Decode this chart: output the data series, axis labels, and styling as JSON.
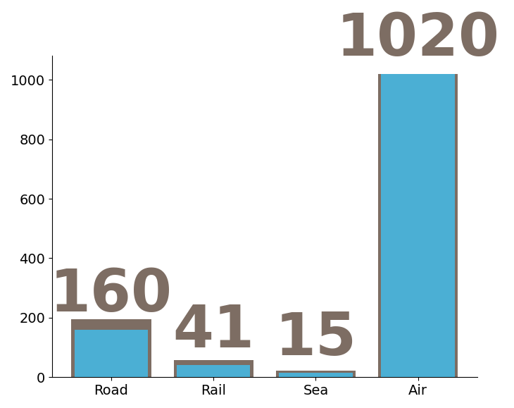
{
  "title": "",
  "figsize": [
    7.3,
    5.79
  ],
  "dpi": 100,
  "bar_color_blue": "#4BAFD4",
  "bar_color_brown": "#7D6D63",
  "background_color": "#FFFFFF",
  "categories": [
    "Road",
    "Rail",
    "Sea",
    "Air"
  ],
  "blue_values": [
    160,
    41,
    15,
    1020
  ],
  "brown_values": [
    195,
    57,
    22,
    1020
  ],
  "ylim": [
    0,
    1080
  ],
  "bar_width": 0.72,
  "label_fontsize": 120,
  "tick_fontsize": 100,
  "bar_gap": 0.28
}
